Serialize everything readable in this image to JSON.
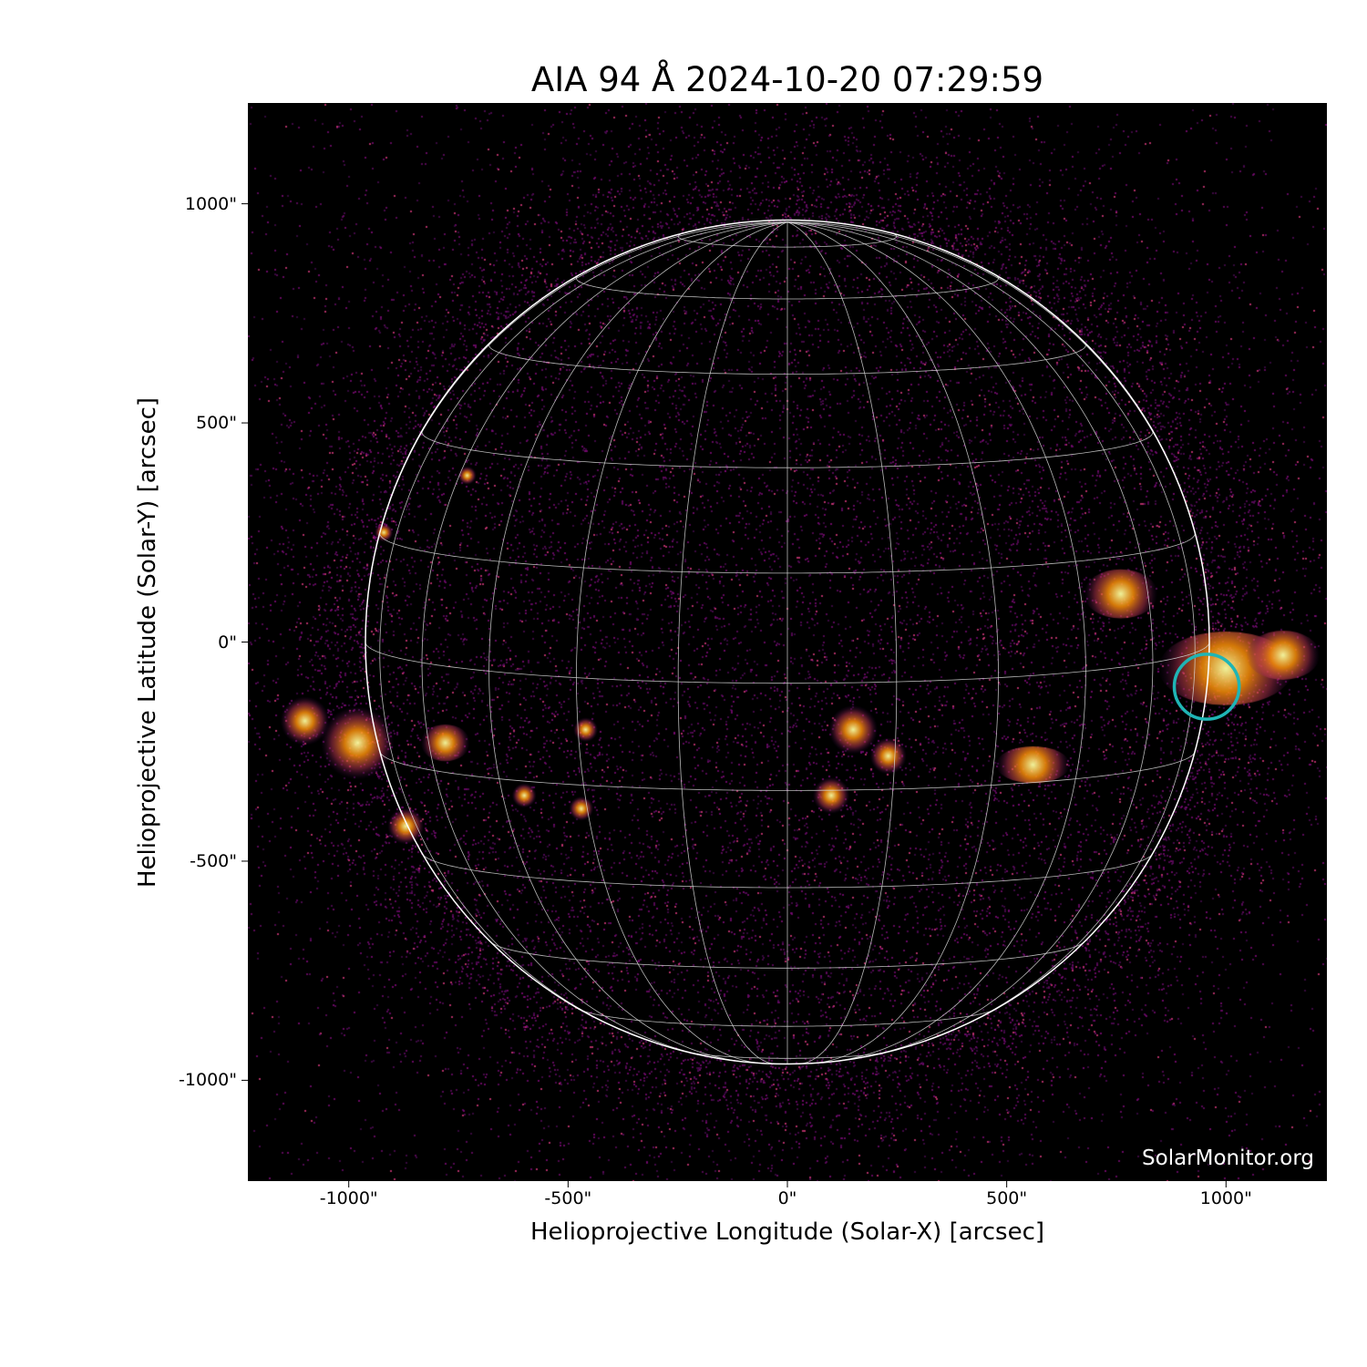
{
  "chart_data": {
    "type": "image",
    "title": "AIA 94 Å 2024-10-20 07:29:59",
    "xlabel": "Helioprojective Longitude (Solar-X) [arcsec]",
    "ylabel": "Helioprojective Latitude (Solar-Y) [arcsec]",
    "xlim": [
      -1230,
      1230
    ],
    "ylim": [
      -1230,
      1230
    ],
    "xticks": [
      {
        "v": -1000,
        "label": "-1000\""
      },
      {
        "v": -500,
        "label": "-500\""
      },
      {
        "v": 0,
        "label": "0\""
      },
      {
        "v": 500,
        "label": "500\""
      },
      {
        "v": 1000,
        "label": "1000\""
      }
    ],
    "yticks": [
      {
        "v": 1000,
        "label": "1000\""
      },
      {
        "v": 500,
        "label": "500\""
      },
      {
        "v": 0,
        "label": "0\""
      },
      {
        "v": -500,
        "label": "-500\""
      },
      {
        "v": -1000,
        "label": "-1000\""
      }
    ],
    "solar_radius_arcsec": 962,
    "b0_deg": 5.6,
    "grid_spacing_deg": 15,
    "grid_color": "#d8d8d8",
    "limb_color": "#ffffff",
    "colormap": "inferno-like (black-purple-orange-yellow)",
    "annotation": {
      "shape": "circle",
      "x": 956,
      "y": -102,
      "radius_arcsec": 74,
      "color": "#1fb5b5"
    },
    "watermark": "SolarMonitor.org"
  }
}
